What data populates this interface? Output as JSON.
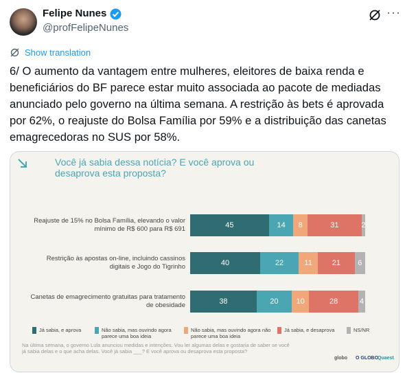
{
  "author": {
    "name": "Felipe Nunes",
    "handle": "@profFelipeNunes"
  },
  "show_translation": "Show translation",
  "text": "6/ O aumento da vantagem entre mulheres, eleitores de baixa renda e beneficiários do BF parece estar muito associada ao pacote de mediadas anunciado pelo governo na última semana. A restrição às bets é aprovada por 62%, o reajuste do Bolsa Família por 59% e a distribuição das canetas emagrecedoras no SUS por 58%.",
  "chart_data": {
    "type": "bar",
    "title": "Você já sabia dessa notícia? E você aprova ou desaprova esta proposta?",
    "categories": [
      "Reajuste de 15% no Bolsa Família, elevando o valor mínimo de R$ 600 para R$ 691",
      "Restrição às apostas on-line, incluindo cassinos digitais e Jogo do Tigrinho",
      "Canetas de emagrecimento gratuitas para tratamento de obesidade"
    ],
    "series": [
      {
        "name": "Já sabia, e aprova",
        "color": "#2f6d73",
        "values": [
          45,
          40,
          38
        ]
      },
      {
        "name": "Não sabia, mas ouvindo agora parece uma boa ideia",
        "color": "#4aa6b3",
        "values": [
          14,
          22,
          20
        ]
      },
      {
        "name": "Não sabia, mas ouvindo agora não parece uma boa ideia",
        "color": "#f0a77a",
        "values": [
          8,
          11,
          10
        ]
      },
      {
        "name": "Já sabia, e desaprova",
        "color": "#de7465",
        "values": [
          31,
          21,
          28
        ]
      },
      {
        "name": "NS/NR",
        "color": "#b3b3b3",
        "values": [
          2,
          6,
          4
        ]
      }
    ],
    "xlim": [
      0,
      100
    ],
    "note": "Na última semana, o governo Lula anunciou medidas e intenções. Vou ler algumas delas e gostaria de saber se você já sabia delas e o que acha delas. Você já sabia ___? E você aprova ou desaprova esta proposta?",
    "logos": [
      "globo",
      "O GLOBO",
      "Quaest"
    ]
  }
}
